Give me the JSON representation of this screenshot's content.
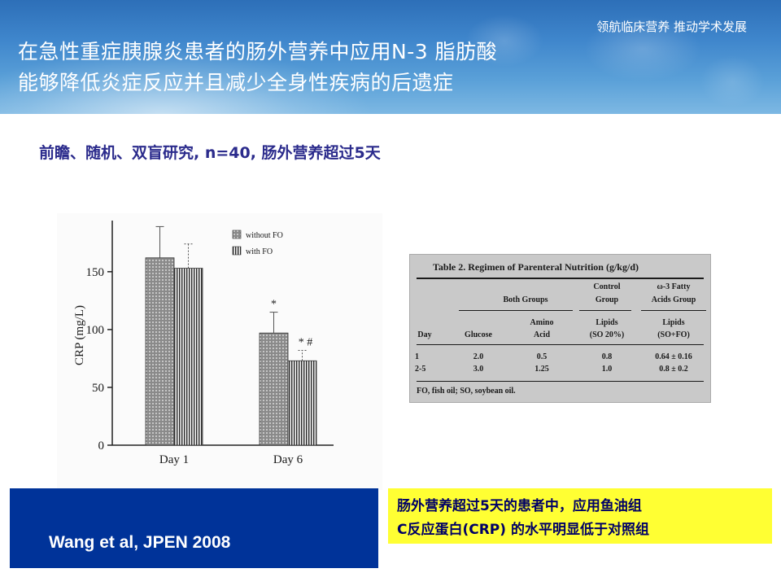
{
  "header": {
    "slogan": "领航临床营养 推动学术发展",
    "title_line1": "在急性重症胰腺炎患者的肠外营养中应用N-3 脂肪酸",
    "title_line2": "能够降低炎症反应并且减少全身性疾病的后遗症"
  },
  "subtitle": "前瞻、随机、双盲研究, n=40, 肠外营养超过5天",
  "chart_data": {
    "type": "bar",
    "ylabel": "CRP (mg/L)",
    "categories": [
      "Day 1",
      "Day 6"
    ],
    "yticks": [
      0,
      50,
      100,
      150
    ],
    "ylim": [
      0,
      190
    ],
    "series": [
      {
        "name": "without FO",
        "values": [
          162,
          97
        ],
        "error": [
          27,
          18
        ],
        "pattern": "dots"
      },
      {
        "name": "with FO",
        "values": [
          153,
          73
        ],
        "error": [
          21,
          9
        ],
        "pattern": "stripes"
      }
    ],
    "annotations": [
      {
        "category": "Day 6",
        "series": "without FO",
        "text": "*"
      },
      {
        "category": "Day 6",
        "series": "with FO",
        "text": "* #"
      }
    ]
  },
  "table": {
    "title": "Table 2.   Regimen of Parenteral Nutrition (g/kg/d)",
    "group_headers": {
      "both": "Both Groups",
      "control_1": "Control",
      "control_2": "Group",
      "omega_1": "ω-3 Fatty",
      "omega_2": "Acids Group"
    },
    "columns": {
      "day": "Day",
      "glucose": "Glucose",
      "amino_1": "Amino",
      "amino_2": "Acid",
      "lipids_c_1": "Lipids",
      "lipids_c_2": "(SO 20%)",
      "lipids_o_1": "Lipids",
      "lipids_o_2": "(SO+FO)"
    },
    "rows": [
      {
        "day": "1",
        "glucose": "2.0",
        "amino": "0.5",
        "lipids_control": "0.8",
        "lipids_omega": "0.64 ± 0.16"
      },
      {
        "day": "2-5",
        "glucose": "3.0",
        "amino": "1.25",
        "lipids_control": "1.0",
        "lipids_omega": "0.8 ± 0.2"
      }
    ],
    "footnote": "FO, fish oil; SO, soybean oil."
  },
  "citation": "Wang et al, JPEN 2008",
  "highlight": {
    "line1": "肠外营养超过5天的患者中，应用鱼油组",
    "line2": "C反应蛋白(CRP) 的水平明显低于对照组"
  },
  "colors": {
    "header_blue": "#2d6fb8",
    "citation_bg": "#003399",
    "highlight_bg": "#ffff33",
    "subtitle_text": "#2b2b8c"
  }
}
